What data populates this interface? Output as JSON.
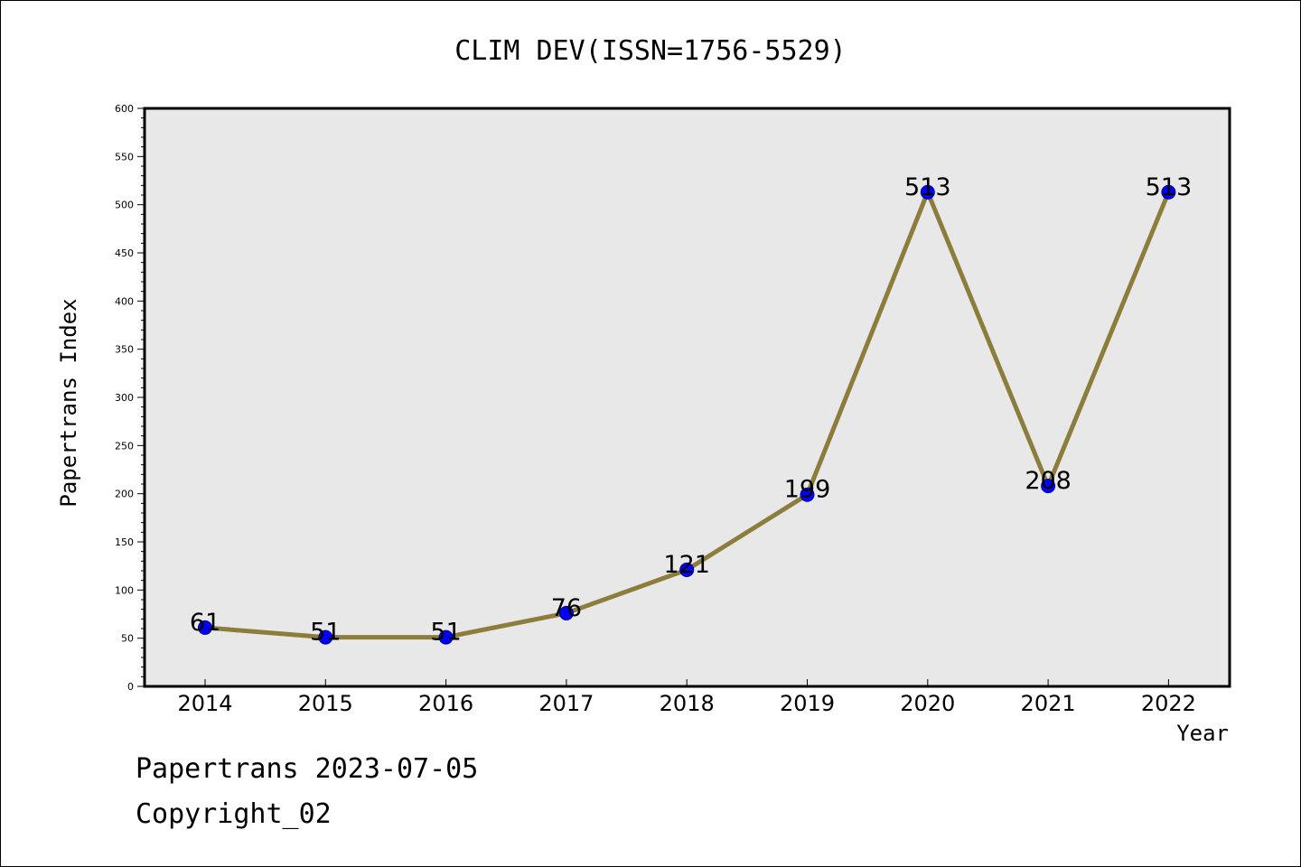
{
  "chart_data": {
    "type": "line",
    "title": "CLIM DEV(ISSN=1756-5529)",
    "xlabel": "Year",
    "ylabel": "Papertrans Index",
    "categories": [
      "2014",
      "2015",
      "2016",
      "2017",
      "2018",
      "2019",
      "2020",
      "2021",
      "2022"
    ],
    "series": [
      {
        "values": [
          61,
          51,
          51,
          76,
          121,
          199,
          513,
          208,
          513
        ]
      }
    ],
    "data_labels": [
      "61",
      "51",
      "51",
      "76",
      "121",
      "199",
      "513",
      "208",
      "513"
    ],
    "ylim": [
      0,
      600
    ],
    "yticks": [
      0,
      50,
      100,
      150,
      200,
      250,
      300,
      350,
      400,
      450,
      500,
      550,
      600
    ],
    "ytick_labels": [
      "0",
      "50",
      "100",
      "150",
      "200",
      "250",
      "300",
      "350",
      "400",
      "450",
      "500",
      "550",
      "600"
    ],
    "grid": false,
    "colors": {
      "line": "#8c7d3c",
      "marker": "#0000ff",
      "marker_edge": "#00008b",
      "plot_background": "#e8e8e8"
    }
  },
  "footer": {
    "line1": "Papertrans 2023-07-05",
    "line2": "Copyright_02"
  }
}
